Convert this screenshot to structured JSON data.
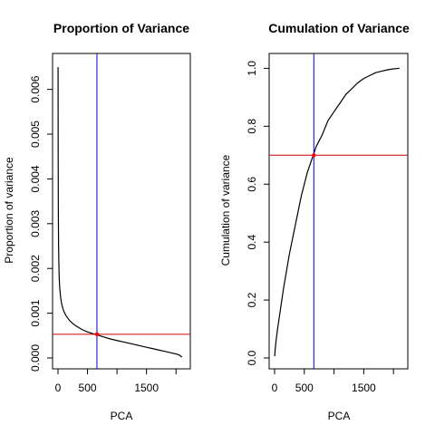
{
  "chart_data": [
    {
      "type": "line",
      "title": "Proportion of Variance",
      "xlabel": "PCA",
      "ylabel": "Proportion of variance",
      "xlim": [
        0,
        2150
      ],
      "ylim": [
        0,
        0.0066
      ],
      "xticks": [
        0,
        500,
        1500
      ],
      "xtick_labels": [
        "0",
        "500",
        "1500"
      ],
      "yticks": [
        0,
        0.001,
        0.002,
        0.003,
        0.004,
        0.005,
        0.006
      ],
      "ytick_labels": [
        "0.000",
        "0.001",
        "0.002",
        "0.003",
        "0.004",
        "0.005",
        "0.006"
      ],
      "grid": false,
      "legend": "none",
      "series": [
        {
          "x": [
            1,
            3,
            6,
            10,
            15,
            20,
            30,
            45,
            60,
            80,
            100,
            130,
            160,
            200,
            250,
            300,
            350,
            400,
            450,
            500,
            550,
            600,
            650,
            700,
            800,
            900,
            1000,
            1100,
            1200,
            1300,
            1400,
            1500,
            1600,
            1700,
            1800,
            1900,
            2000,
            2050,
            2100
          ],
          "y": [
            0.0065,
            0.0045,
            0.0032,
            0.0025,
            0.0021,
            0.0018,
            0.00155,
            0.00135,
            0.00122,
            0.00112,
            0.00104,
            0.00096,
            0.0009,
            0.00083,
            0.00077,
            0.00072,
            0.00068,
            0.00064,
            0.00061,
            0.00058,
            0.00056,
            0.00054,
            0.00052,
            0.0005,
            0.00046,
            0.00042,
            0.00039,
            0.00036,
            0.00033,
            0.0003,
            0.00027,
            0.00024,
            0.00021,
            0.00018,
            0.00015,
            0.00012,
            9e-05,
            7e-05,
            2e-05
          ],
          "color": "#000000"
        }
      ],
      "reference_lines": {
        "vertical_x": 660,
        "vertical_color": "#0000cc",
        "horizontal_y": 0.00053,
        "horizontal_color": "#cc0000"
      },
      "marker": {
        "x": 660,
        "y": 0.00053,
        "color": "#ff0000"
      }
    },
    {
      "type": "line",
      "title": "Cumulation of Variance",
      "xlabel": "PCA",
      "ylabel": "Cumulation of variance",
      "xlim": [
        0,
        2150
      ],
      "ylim": [
        0,
        1.02
      ],
      "xticks": [
        0,
        500,
        1500
      ],
      "xtick_labels": [
        "0",
        "500",
        "1500"
      ],
      "yticks": [
        0,
        0.2,
        0.4,
        0.6,
        0.8,
        1.0
      ],
      "ytick_labels": [
        "0.0",
        "0.2",
        "0.4",
        "0.6",
        "0.8",
        "1.0"
      ],
      "grid": false,
      "legend": "none",
      "series": [
        {
          "x": [
            1,
            10,
            25,
            50,
            100,
            150,
            200,
            250,
            300,
            350,
            400,
            450,
            500,
            550,
            600,
            650,
            700,
            800,
            900,
            1000,
            1100,
            1200,
            1300,
            1400,
            1500,
            1600,
            1700,
            1800,
            1900,
            2000,
            2050,
            2100
          ],
          "y": [
            0.006,
            0.03,
            0.06,
            0.1,
            0.17,
            0.24,
            0.3,
            0.36,
            0.41,
            0.46,
            0.51,
            0.56,
            0.6,
            0.64,
            0.67,
            0.7,
            0.73,
            0.77,
            0.82,
            0.85,
            0.88,
            0.91,
            0.93,
            0.95,
            0.965,
            0.975,
            0.985,
            0.99,
            0.995,
            0.998,
            0.999,
            1.0
          ],
          "color": "#000000"
        }
      ],
      "reference_lines": {
        "vertical_x": 660,
        "vertical_color": "#0000cc",
        "horizontal_y": 0.7,
        "horizontal_color": "#cc0000"
      },
      "marker": {
        "x": 660,
        "y": 0.7,
        "color": "#ff0000"
      }
    }
  ]
}
